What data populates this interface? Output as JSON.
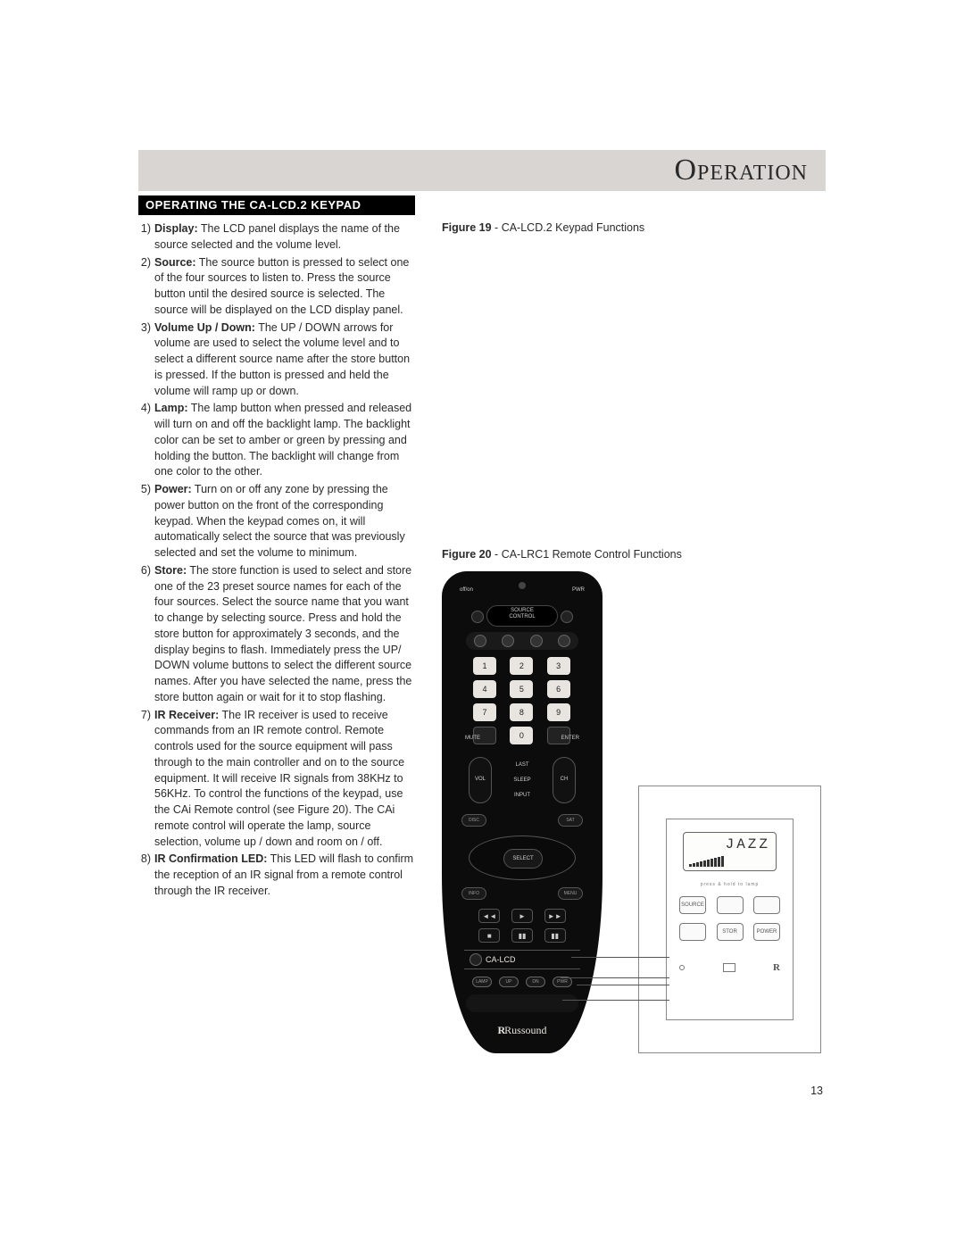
{
  "header": {
    "page_title": "Operation",
    "section_title": "OPERATING THE CA-LCD.2 KEYPAD"
  },
  "items": [
    {
      "n": "1)",
      "lead": "Display:",
      "body": " The LCD panel displays the name of the source selected and the volume level."
    },
    {
      "n": "2)",
      "lead": "Source:",
      "body": " The source button is pressed to select one of the four sources to listen to. Press the source button until the desired source is selected. The source will be displayed on the LCD display panel."
    },
    {
      "n": "3)",
      "lead": "Volume Up / Down:",
      "body": " The UP / DOWN arrows for volume are used to select the volume level and to select a different source name after the store button is pressed. If the button is pressed and held the volume will ramp up or down."
    },
    {
      "n": "4)",
      "lead": "Lamp:",
      "body": " The lamp button when pressed and released will turn on and off the backlight lamp. The backlight color can be set to amber or green by pressing and holding the button. The backlight will change from one color to the other."
    },
    {
      "n": "5)",
      "lead": "Power:",
      "body": " Turn on or off any zone by pressing the power button on the front of the corresponding keypad.  When the keypad comes on, it will automatically select the source that was previously selected and set the volume to minimum."
    },
    {
      "n": "6)",
      "lead": "Store:",
      "body": " The store function is used to select and store one of the 23 preset source names for each of the four sources. Select the source name that you want to change by selecting source. Press and hold the store button for approximately 3 seconds, and the display begins to flash. Immediately press the UP/ DOWN volume buttons to select the different source names. After you have selected the name, press the store button again or wait for it to stop flashing."
    },
    {
      "n": "7)",
      "lead": "IR Receiver:",
      "body": " The IR receiver is used to receive commands from an IR remote control. Remote controls used for the source equipment will pass through to the main controller and on to the source equipment. It will receive IR signals from 38KHz to 56KHz. To control the functions of the keypad, use the CAi Remote control (see Figure 20). The CAi remote control will operate the lamp, source selection, volume up / down and room on / off."
    },
    {
      "n": "8)",
      "lead": "IR Confirmation LED:",
      "body": " This LED will flash to confirm the reception of an IR signal from a remote control through the IR receiver."
    }
  ],
  "fig19": {
    "label": "Figure 19",
    "sep": " - ",
    "desc": "CA-LCD.2 Keypad Functions"
  },
  "fig20": {
    "label": "Figure 20",
    "sep": " - ",
    "desc": "CA-LRC1 Remote Control Functions"
  },
  "remote": {
    "top_left": "off/on",
    "top_right": "PWR",
    "source_control": "SOURCE\nCONTROL",
    "numpad": [
      "1",
      "2",
      "3",
      "4",
      "5",
      "6",
      "7",
      "8",
      "9",
      "",
      "0",
      ""
    ],
    "numpad_left": "MUTE",
    "numpad_right": "ENTER",
    "mid_top": "LAST",
    "mid_mid": "SLEEP",
    "mid_bot": "INPUT",
    "vol_label": "VOL",
    "ch_label": "CH",
    "pill_left": "DISC",
    "pill_right": "SAT",
    "select": "SELECT",
    "pill2_left": "INFO",
    "pill2_right": "MENU",
    "transport": [
      "◄◄",
      "►",
      "►►",
      "■",
      "▮▮",
      "▮▮"
    ],
    "ca_label": "CA-LCD",
    "bottom_pills": [
      "LAMP",
      "UP",
      "DN",
      "PWR"
    ],
    "brand": "Russound"
  },
  "keypad": {
    "lcd_text": "JAZZ",
    "sublabel": "press & hold to lamp",
    "row1": [
      "SOURCE",
      "",
      ""
    ],
    "row2_left": "",
    "row2_mid": "STOR",
    "row2_right": "POWER"
  },
  "page_number": "13",
  "colors": {
    "header_bar": "#d9d5d2",
    "section_bar_bg": "#000000",
    "section_bar_fg": "#ffffff",
    "text": "#2a2a2a",
    "remote_body": "#0c0c0c",
    "remote_fg": "#cfcfcf",
    "key_bg": "#e8e4df"
  },
  "fonts": {
    "title_family": "Georgia serif small-caps",
    "title_size_pt": 26,
    "body_family": "Segoe UI / Arial sans-serif",
    "body_size_pt": 9.5,
    "section_bar_size_pt": 10
  }
}
